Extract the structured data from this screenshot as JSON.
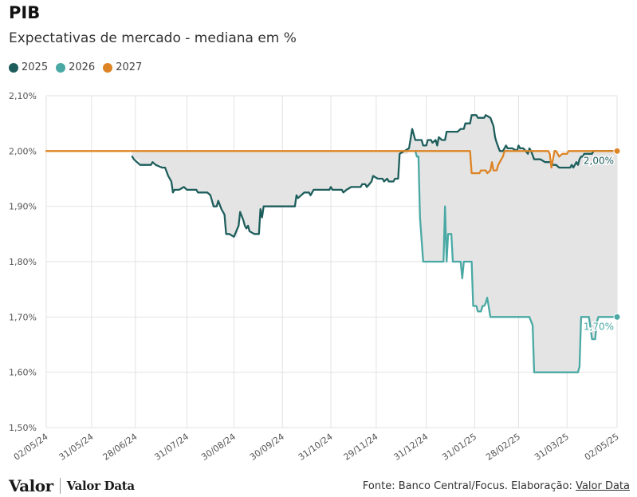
{
  "header": {
    "title": "PIB",
    "subtitle": "Expectativas de mercado - mediana em %"
  },
  "legend": [
    {
      "label": "2025",
      "color": "#1d5e5c"
    },
    {
      "label": "2026",
      "color": "#4aa9a4"
    },
    {
      "label": "2027",
      "color": "#dd8424"
    }
  ],
  "footer": {
    "logo_valor": "Valor",
    "logo_valordata": "Valor Data",
    "source_prefix": "Fonte: Banco Central/Focus. Elaboração: ",
    "source_link": "Valor Data"
  },
  "chart_data": {
    "type": "line",
    "title": "PIB",
    "subtitle": "Expectativas de mercado - mediana em %",
    "y_range": [
      1.5,
      2.1
    ],
    "y_ticks": [
      "1,50%",
      "1,60%",
      "1,70%",
      "1,80%",
      "1,90%",
      "2,00%",
      "2,10%"
    ],
    "y_tick_values": [
      1.5,
      1.6,
      1.7,
      1.8,
      1.9,
      2.0,
      2.1
    ],
    "x_range": [
      "2024-05-02",
      "2025-05-02"
    ],
    "x_ticks": [
      "02/05/24",
      "31/05/24",
      "28/06/24",
      "31/07/24",
      "30/08/24",
      "30/09/24",
      "31/10/24",
      "29/11/24",
      "31/12/24",
      "31/01/25",
      "28/02/25",
      "31/03/25",
      "02/05/25"
    ],
    "x_tick_dates": [
      "2024-05-02",
      "2024-05-31",
      "2024-06-28",
      "2024-07-31",
      "2024-08-30",
      "2024-09-30",
      "2024-10-31",
      "2024-11-29",
      "2024-12-31",
      "2025-01-31",
      "2025-02-28",
      "2025-03-31",
      "2025-05-02"
    ],
    "grid": "vertical and horizontal",
    "fill_between": "2025 and 2027 series until the 2026 series appears, then the lowest and highest of all three series",
    "series": [
      {
        "name": "2025",
        "color": "#1d5e5c",
        "points": [
          [
            "2024-06-26",
            1.99
          ],
          [
            "2024-06-27",
            1.985
          ],
          [
            "2024-07-01",
            1.975
          ],
          [
            "2024-07-05",
            1.975
          ],
          [
            "2024-07-08",
            1.975
          ],
          [
            "2024-07-09",
            1.98
          ],
          [
            "2024-07-11",
            1.975
          ],
          [
            "2024-07-15",
            1.97
          ],
          [
            "2024-07-17",
            1.97
          ],
          [
            "2024-07-19",
            1.955
          ],
          [
            "2024-07-21",
            1.945
          ],
          [
            "2024-07-22",
            1.925
          ],
          [
            "2024-07-23",
            1.93
          ],
          [
            "2024-07-26",
            1.93
          ],
          [
            "2024-07-29",
            1.935
          ],
          [
            "2024-07-31",
            1.93
          ],
          [
            "2024-08-06",
            1.93
          ],
          [
            "2024-08-07",
            1.925
          ],
          [
            "2024-08-13",
            1.925
          ],
          [
            "2024-08-15",
            1.92
          ],
          [
            "2024-08-17",
            1.9
          ],
          [
            "2024-08-19",
            1.9
          ],
          [
            "2024-08-20",
            1.91
          ],
          [
            "2024-08-22",
            1.895
          ],
          [
            "2024-08-24",
            1.885
          ],
          [
            "2024-08-25",
            1.85
          ],
          [
            "2024-08-27",
            1.85
          ],
          [
            "2024-08-30",
            1.845
          ],
          [
            "2024-09-02",
            1.865
          ],
          [
            "2024-09-03",
            1.89
          ],
          [
            "2024-09-05",
            1.875
          ],
          [
            "2024-09-06",
            1.865
          ],
          [
            "2024-09-07",
            1.86
          ],
          [
            "2024-09-08",
            1.865
          ],
          [
            "2024-09-09",
            1.855
          ],
          [
            "2024-09-12",
            1.85
          ],
          [
            "2024-09-13",
            1.85
          ],
          [
            "2024-09-15",
            1.85
          ],
          [
            "2024-09-16",
            1.895
          ],
          [
            "2024-09-17",
            1.88
          ],
          [
            "2024-09-18",
            1.9
          ],
          [
            "2024-09-20",
            1.9
          ],
          [
            "2024-10-08",
            1.9
          ],
          [
            "2024-10-09",
            1.92
          ],
          [
            "2024-10-10",
            1.915
          ],
          [
            "2024-10-12",
            1.92
          ],
          [
            "2024-10-14",
            1.925
          ],
          [
            "2024-10-17",
            1.925
          ],
          [
            "2024-10-18",
            1.92
          ],
          [
            "2024-10-20",
            1.93
          ],
          [
            "2024-10-30",
            1.93
          ],
          [
            "2024-10-31",
            1.935
          ],
          [
            "2024-11-01",
            1.93
          ],
          [
            "2024-11-07",
            1.93
          ],
          [
            "2024-11-08",
            1.925
          ],
          [
            "2024-11-10",
            1.93
          ],
          [
            "2024-11-13",
            1.935
          ],
          [
            "2024-11-19",
            1.935
          ],
          [
            "2024-11-20",
            1.94
          ],
          [
            "2024-11-22",
            1.94
          ],
          [
            "2024-11-23",
            1.935
          ],
          [
            "2024-11-26",
            1.945
          ],
          [
            "2024-11-27",
            1.955
          ],
          [
            "2024-11-30",
            1.95
          ],
          [
            "2024-12-03",
            1.95
          ],
          [
            "2024-12-04",
            1.945
          ],
          [
            "2024-12-06",
            1.95
          ],
          [
            "2024-12-07",
            1.945
          ],
          [
            "2024-12-10",
            1.945
          ],
          [
            "2024-12-11",
            1.95
          ],
          [
            "2024-12-13",
            1.95
          ],
          [
            "2024-12-14",
            1.995
          ],
          [
            "2024-12-20",
            2.005
          ],
          [
            "2024-12-22",
            2.04
          ],
          [
            "2024-12-24",
            2.02
          ],
          [
            "2024-12-28",
            2.02
          ],
          [
            "2024-12-29",
            2.01
          ],
          [
            "2024-12-31",
            2.01
          ],
          [
            "2025-01-01",
            2.02
          ],
          [
            "2025-01-03",
            2.02
          ],
          [
            "2025-01-04",
            2.015
          ],
          [
            "2025-01-06",
            2.02
          ],
          [
            "2025-01-07",
            2.01
          ],
          [
            "2025-01-08",
            2.025
          ],
          [
            "2025-01-10",
            2.02
          ],
          [
            "2025-01-12",
            2.02
          ],
          [
            "2025-01-13",
            2.035
          ],
          [
            "2025-01-20",
            2.035
          ],
          [
            "2025-01-22",
            2.04
          ],
          [
            "2025-01-24",
            2.04
          ],
          [
            "2025-01-25",
            2.05
          ],
          [
            "2025-01-28",
            2.05
          ],
          [
            "2025-01-29",
            2.065
          ],
          [
            "2025-02-01",
            2.065
          ],
          [
            "2025-02-02",
            2.06
          ],
          [
            "2025-02-06",
            2.06
          ],
          [
            "2025-02-07",
            2.065
          ],
          [
            "2025-02-10",
            2.06
          ],
          [
            "2025-02-12",
            2.045
          ],
          [
            "2025-02-13",
            2.025
          ],
          [
            "2025-02-14",
            2.015
          ],
          [
            "2025-02-16",
            2.0
          ],
          [
            "2025-02-18",
            2.0
          ],
          [
            "2025-02-20",
            2.01
          ],
          [
            "2025-02-21",
            2.005
          ],
          [
            "2025-02-24",
            2.005
          ],
          [
            "2025-02-27",
            2.0
          ],
          [
            "2025-02-28",
            2.01
          ],
          [
            "2025-03-01",
            2.005
          ],
          [
            "2025-03-03",
            2.005
          ],
          [
            "2025-03-06",
            1.995
          ],
          [
            "2025-03-07",
            2.005
          ],
          [
            "2025-03-08",
            2.0
          ],
          [
            "2025-03-10",
            1.985
          ],
          [
            "2025-03-14",
            1.985
          ],
          [
            "2025-03-17",
            1.98
          ],
          [
            "2025-03-21",
            1.98
          ],
          [
            "2025-03-22",
            1.975
          ],
          [
            "2025-03-24",
            1.975
          ],
          [
            "2025-03-26",
            1.97
          ],
          [
            "2025-04-02",
            1.97
          ],
          [
            "2025-04-03",
            1.975
          ],
          [
            "2025-04-04",
            1.97
          ],
          [
            "2025-04-05",
            1.975
          ],
          [
            "2025-04-06",
            1.98
          ],
          [
            "2025-04-07",
            1.975
          ],
          [
            "2025-04-08",
            1.985
          ],
          [
            "2025-04-09",
            1.99
          ],
          [
            "2025-04-10",
            1.99
          ],
          [
            "2025-04-11",
            1.995
          ],
          [
            "2025-04-16",
            1.995
          ],
          [
            "2025-04-17",
            2.0
          ],
          [
            "2025-05-02",
            2.0
          ]
        ],
        "end_label": "2,00%"
      },
      {
        "name": "2026",
        "color": "#4aa9a4",
        "points": [
          [
            "2024-12-24",
            2.0
          ],
          [
            "2024-12-25",
            1.99
          ],
          [
            "2024-12-26",
            1.99
          ],
          [
            "2024-12-27",
            1.88
          ],
          [
            "2024-12-28",
            1.84
          ],
          [
            "2024-12-29",
            1.8
          ],
          [
            "2025-01-10",
            1.8
          ],
          [
            "2025-01-11",
            1.8
          ],
          [
            "2025-01-12",
            1.9
          ],
          [
            "2025-01-13",
            1.8
          ],
          [
            "2025-01-14",
            1.85
          ],
          [
            "2025-01-16",
            1.85
          ],
          [
            "2025-01-17",
            1.8
          ],
          [
            "2025-01-22",
            1.8
          ],
          [
            "2025-01-23",
            1.77
          ],
          [
            "2025-01-24",
            1.8
          ],
          [
            "2025-01-29",
            1.8
          ],
          [
            "2025-01-30",
            1.72
          ],
          [
            "2025-02-01",
            1.72
          ],
          [
            "2025-02-02",
            1.71
          ],
          [
            "2025-02-04",
            1.71
          ],
          [
            "2025-02-05",
            1.72
          ],
          [
            "2025-02-06",
            1.72
          ],
          [
            "2025-02-07",
            1.725
          ],
          [
            "2025-02-08",
            1.735
          ],
          [
            "2025-02-10",
            1.7
          ],
          [
            "2025-03-07",
            1.7
          ],
          [
            "2025-03-09",
            1.685
          ],
          [
            "2025-03-10",
            1.6
          ],
          [
            "2025-04-07",
            1.6
          ],
          [
            "2025-04-08",
            1.61
          ],
          [
            "2025-04-09",
            1.7
          ],
          [
            "2025-04-14",
            1.7
          ],
          [
            "2025-04-15",
            1.68
          ],
          [
            "2025-04-16",
            1.66
          ],
          [
            "2025-04-18",
            1.66
          ],
          [
            "2025-04-19",
            1.69
          ],
          [
            "2025-04-20",
            1.7
          ],
          [
            "2025-05-02",
            1.7
          ]
        ],
        "end_label": "1,70%"
      },
      {
        "name": "2027",
        "color": "#dd8424",
        "points": [
          [
            "2024-05-02",
            2.0
          ],
          [
            "2025-01-28",
            2.0
          ],
          [
            "2025-01-29",
            1.96
          ],
          [
            "2025-02-03",
            1.96
          ],
          [
            "2025-02-04",
            1.965
          ],
          [
            "2025-02-07",
            1.965
          ],
          [
            "2025-02-08",
            1.96
          ],
          [
            "2025-02-10",
            1.965
          ],
          [
            "2025-02-11",
            1.98
          ],
          [
            "2025-02-12",
            1.965
          ],
          [
            "2025-02-14",
            1.965
          ],
          [
            "2025-02-15",
            1.975
          ],
          [
            "2025-02-16",
            1.98
          ],
          [
            "2025-02-17",
            1.985
          ],
          [
            "2025-02-18",
            1.99
          ],
          [
            "2025-02-19",
            2.0
          ],
          [
            "2025-03-19",
            2.0
          ],
          [
            "2025-03-20",
            1.995
          ],
          [
            "2025-03-21",
            1.97
          ],
          [
            "2025-03-22",
            1.985
          ],
          [
            "2025-03-23",
            2.0
          ],
          [
            "2025-03-24",
            2.0
          ],
          [
            "2025-03-26",
            1.99
          ],
          [
            "2025-03-28",
            1.995
          ],
          [
            "2025-03-31",
            1.995
          ],
          [
            "2025-04-01",
            2.0
          ],
          [
            "2025-05-02",
            2.0
          ]
        ]
      }
    ]
  }
}
